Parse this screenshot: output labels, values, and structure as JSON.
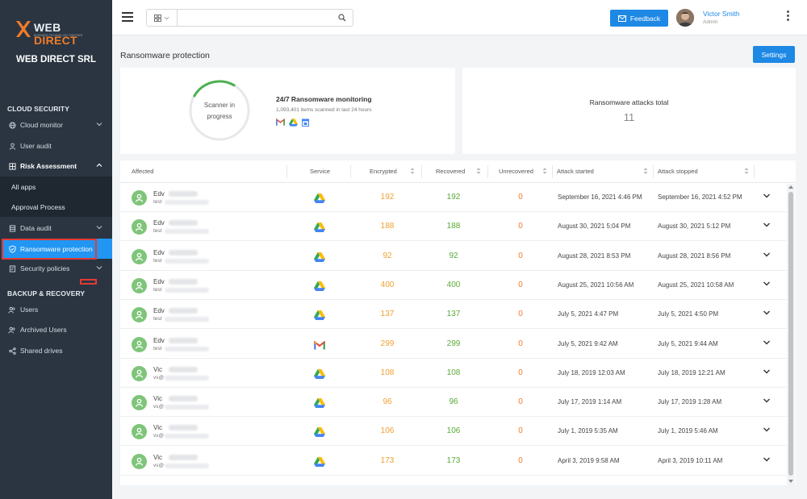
{
  "brand": {
    "name_part1": "WEB ",
    "name_part2": "DIRECT",
    "tagline": "BUSINESS TECHNOLOGY PARTNER",
    "company": "WEB DIRECT SRL",
    "accent": "#f07b29"
  },
  "sidebar": {
    "sections": [
      "CLOUD SECURITY",
      "BACKUP & RECOVERY"
    ],
    "items": [
      {
        "label": "Cloud monitor",
        "icon": "globe-icon"
      },
      {
        "label": "User audit",
        "icon": "user-icon"
      },
      {
        "label": "Risk Assessment",
        "icon": "grid-icon"
      },
      {
        "label": "All apps"
      },
      {
        "label": "Approval Process"
      },
      {
        "label": "Data audit",
        "icon": "database-icon"
      },
      {
        "label": "Ransomware protection",
        "icon": "shield-icon"
      },
      {
        "label": "Security policies",
        "icon": "policy-icon"
      },
      {
        "label": "Users",
        "icon": "users-icon"
      },
      {
        "label": "Archived Users",
        "icon": "archived-users-icon"
      },
      {
        "label": "Shared drives",
        "icon": "share-icon"
      }
    ]
  },
  "topbar": {
    "search_placeholder": "",
    "feedback_label": "Feedback",
    "user_name": "Victor Smith",
    "user_role": "Admin"
  },
  "page": {
    "title": "Ransomware protection",
    "settings_label": "Settings",
    "scanner_line1": "Scanner in",
    "scanner_line2": "progress",
    "monitor_title": "24/7 Ransomware monitoring",
    "monitor_sub": "1,093,401 items scanned in last 24 hours",
    "attacks_title": "Ransomware attacks total",
    "attacks_value": "11"
  },
  "table": {
    "headers": [
      "Affected",
      "Service",
      "Encrypted",
      "Recovered",
      "Unrecovered",
      "Attack started",
      "Attack stopped"
    ],
    "rows": [
      {
        "name": "Edv",
        "email": "test",
        "service": "drive",
        "encrypted": "192",
        "recovered": "192",
        "unrecovered": "0",
        "started": "September 16, 2021 4:46 PM",
        "stopped": "September 16, 2021 4:52 PM"
      },
      {
        "name": "Edv",
        "email": "test",
        "service": "drive",
        "encrypted": "188",
        "recovered": "188",
        "unrecovered": "0",
        "started": "August 30, 2021 5:04 PM",
        "stopped": "August 30, 2021 5:12 PM"
      },
      {
        "name": "Edv",
        "email": "test",
        "service": "drive",
        "encrypted": "92",
        "recovered": "92",
        "unrecovered": "0",
        "started": "August 28, 2021 8:53 PM",
        "stopped": "August 28, 2021 8:56 PM"
      },
      {
        "name": "Edv",
        "email": "test",
        "service": "drive",
        "encrypted": "400",
        "recovered": "400",
        "unrecovered": "0",
        "started": "August 25, 2021 10:56 AM",
        "stopped": "August 25, 2021 10:58 AM"
      },
      {
        "name": "Edv",
        "email": "test",
        "service": "drive",
        "encrypted": "137",
        "recovered": "137",
        "unrecovered": "0",
        "started": "July 5, 2021 4:47 PM",
        "stopped": "July 5, 2021 4:50 PM"
      },
      {
        "name": "Edv",
        "email": "test",
        "service": "gmail",
        "encrypted": "299",
        "recovered": "299",
        "unrecovered": "0",
        "started": "July 5, 2021 9:42 AM",
        "stopped": "July 5, 2021 9:44 AM"
      },
      {
        "name": "Vic",
        "email": "vs@",
        "service": "drive",
        "encrypted": "108",
        "recovered": "108",
        "unrecovered": "0",
        "started": "July 18, 2019 12:03 AM",
        "stopped": "July 18, 2019 12:21 AM"
      },
      {
        "name": "Vic",
        "email": "vs@",
        "service": "drive",
        "encrypted": "96",
        "recovered": "96",
        "unrecovered": "0",
        "started": "July 17, 2019 1:14 AM",
        "stopped": "July 17, 2019 1:28 AM"
      },
      {
        "name": "Vic",
        "email": "vs@",
        "service": "drive",
        "encrypted": "106",
        "recovered": "106",
        "unrecovered": "0",
        "started": "July 1, 2019 5:35 AM",
        "stopped": "July 1, 2019 5:46 AM"
      },
      {
        "name": "Vic",
        "email": "vs@",
        "service": "drive",
        "encrypted": "173",
        "recovered": "173",
        "unrecovered": "0",
        "started": "April 3, 2019 9:58 AM",
        "stopped": "April 3, 2019 10:11 AM"
      }
    ]
  },
  "colors": {
    "primary": "#1e88e5",
    "sidebar_bg": "#2a3541",
    "encrypted": "#f0a030",
    "recovered": "#5aaa3a",
    "unrecovered": "#f07b29",
    "highlight": "#e53935"
  }
}
